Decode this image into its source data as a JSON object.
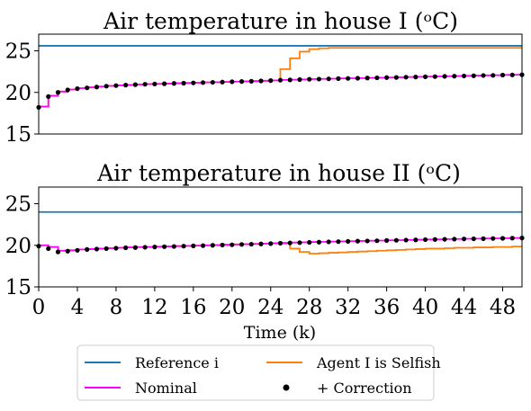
{
  "chart_data": [
    {
      "type": "line",
      "title": "Air temperature in house I (ᵒC)",
      "xlabel": "",
      "ylabel": "",
      "xlim": [
        0,
        50
      ],
      "ylim": [
        15,
        27
      ],
      "y_ticks": [
        15,
        20,
        25
      ],
      "show_x_ticklabels": false,
      "grid": false,
      "series": [
        {
          "name": "Reference i",
          "color": "#1f77b4",
          "style": "line",
          "x": [
            0,
            50
          ],
          "y": [
            25.6,
            25.6
          ]
        },
        {
          "name": "Agent I is Selfish",
          "color": "#ff7f0e",
          "style": "step",
          "x": [
            0,
            1,
            2,
            3,
            4,
            5,
            6,
            7,
            8,
            9,
            10,
            11,
            12,
            13,
            14,
            15,
            16,
            17,
            18,
            19,
            20,
            21,
            22,
            23,
            24,
            25,
            26,
            27,
            28,
            29,
            30,
            31,
            32,
            33,
            34,
            35,
            36,
            37,
            38,
            39,
            40,
            41,
            42,
            43,
            44,
            45,
            46,
            47,
            48,
            49,
            50
          ],
          "y": [
            18.3,
            19.6,
            20.1,
            20.35,
            20.5,
            20.6,
            20.7,
            20.78,
            20.85,
            20.9,
            20.95,
            21.0,
            21.03,
            21.06,
            21.1,
            21.13,
            21.16,
            21.2,
            21.23,
            21.26,
            21.3,
            21.33,
            21.36,
            21.4,
            21.45,
            22.8,
            24.1,
            24.9,
            25.2,
            25.3,
            25.35,
            25.35,
            25.35,
            25.35,
            25.35,
            25.35,
            25.35,
            25.35,
            25.35,
            25.35,
            25.35,
            25.35,
            25.35,
            25.35,
            25.35,
            25.35,
            25.35,
            25.35,
            25.35,
            25.35,
            25.35
          ]
        },
        {
          "name": "Nominal",
          "color": "#ff00ff",
          "style": "step",
          "x": [
            0,
            1,
            2,
            3,
            4,
            5,
            6,
            7,
            8,
            9,
            10,
            11,
            12,
            13,
            14,
            15,
            16,
            17,
            18,
            19,
            20,
            21,
            22,
            23,
            24,
            25,
            26,
            27,
            28,
            29,
            30,
            31,
            32,
            33,
            34,
            35,
            36,
            37,
            38,
            39,
            40,
            41,
            42,
            43,
            44,
            45,
            46,
            47,
            48,
            49,
            50
          ],
          "y": [
            18.3,
            19.6,
            20.1,
            20.35,
            20.5,
            20.6,
            20.7,
            20.78,
            20.85,
            20.9,
            20.95,
            21.0,
            21.03,
            21.06,
            21.1,
            21.13,
            21.16,
            21.2,
            21.23,
            21.26,
            21.3,
            21.33,
            21.36,
            21.4,
            21.45,
            21.5,
            21.53,
            21.56,
            21.6,
            21.62,
            21.65,
            21.68,
            21.7,
            21.72,
            21.75,
            21.77,
            21.8,
            21.82,
            21.85,
            21.87,
            21.9,
            21.92,
            21.95,
            21.97,
            22.0,
            22.02,
            22.05,
            22.07,
            22.1,
            22.12,
            22.15
          ]
        },
        {
          "name": "+ Correction",
          "color": "#000000",
          "style": "dots",
          "x": [
            0,
            1,
            2,
            3,
            4,
            5,
            6,
            7,
            8,
            9,
            10,
            11,
            12,
            13,
            14,
            15,
            16,
            17,
            18,
            19,
            20,
            21,
            22,
            23,
            24,
            25,
            26,
            27,
            28,
            29,
            30,
            31,
            32,
            33,
            34,
            35,
            36,
            37,
            38,
            39,
            40,
            41,
            42,
            43,
            44,
            45,
            46,
            47,
            48,
            49,
            50
          ],
          "y": [
            18.2,
            19.5,
            20.0,
            20.3,
            20.45,
            20.55,
            20.65,
            20.75,
            20.82,
            20.88,
            20.93,
            20.98,
            21.01,
            21.04,
            21.08,
            21.11,
            21.14,
            21.18,
            21.21,
            21.24,
            21.28,
            21.31,
            21.34,
            21.38,
            21.42,
            21.47,
            21.5,
            21.54,
            21.58,
            21.6,
            21.63,
            21.66,
            21.68,
            21.7,
            21.73,
            21.75,
            21.78,
            21.8,
            21.83,
            21.85,
            21.88,
            21.9,
            21.93,
            21.95,
            21.98,
            22.0,
            22.03,
            22.05,
            22.08,
            22.1,
            22.12
          ]
        }
      ]
    },
    {
      "type": "line",
      "title": "Air temperature in house II (ᵒC)",
      "xlabel": "Time (k)",
      "ylabel": "",
      "xlim": [
        0,
        50
      ],
      "ylim": [
        15,
        27
      ],
      "y_ticks": [
        15,
        20,
        25
      ],
      "x_ticks": [
        0,
        4,
        8,
        12,
        16,
        20,
        24,
        28,
        32,
        36,
        40,
        44,
        48
      ],
      "grid": false,
      "series": [
        {
          "name": "Reference i",
          "color": "#1f77b4",
          "style": "line",
          "x": [
            0,
            50
          ],
          "y": [
            24.0,
            24.0
          ]
        },
        {
          "name": "Agent I is Selfish",
          "color": "#ff7f0e",
          "style": "step",
          "x": [
            0,
            1,
            2,
            3,
            4,
            5,
            6,
            7,
            8,
            9,
            10,
            11,
            12,
            13,
            14,
            15,
            16,
            17,
            18,
            19,
            20,
            21,
            22,
            23,
            24,
            25,
            26,
            27,
            28,
            29,
            30,
            31,
            32,
            33,
            34,
            35,
            36,
            37,
            38,
            39,
            40,
            41,
            42,
            43,
            44,
            45,
            46,
            47,
            48,
            49,
            50
          ],
          "y": [
            20.0,
            19.8,
            19.35,
            19.4,
            19.5,
            19.55,
            19.6,
            19.65,
            19.7,
            19.75,
            19.78,
            19.8,
            19.83,
            19.86,
            19.9,
            19.93,
            19.96,
            20.0,
            20.03,
            20.06,
            20.1,
            20.13,
            20.16,
            20.2,
            20.25,
            20.2,
            19.6,
            19.2,
            19.0,
            19.05,
            19.1,
            19.15,
            19.2,
            19.25,
            19.3,
            19.35,
            19.4,
            19.45,
            19.5,
            19.55,
            19.6,
            19.6,
            19.65,
            19.7,
            19.7,
            19.75,
            19.75,
            19.8,
            19.8,
            19.85,
            19.85
          ]
        },
        {
          "name": "Nominal",
          "color": "#ff00ff",
          "style": "step",
          "x": [
            0,
            1,
            2,
            3,
            4,
            5,
            6,
            7,
            8,
            9,
            10,
            11,
            12,
            13,
            14,
            15,
            16,
            17,
            18,
            19,
            20,
            21,
            22,
            23,
            24,
            25,
            26,
            27,
            28,
            29,
            30,
            31,
            32,
            33,
            34,
            35,
            36,
            37,
            38,
            39,
            40,
            41,
            42,
            43,
            44,
            45,
            46,
            47,
            48,
            49,
            50
          ],
          "y": [
            20.0,
            19.8,
            19.35,
            19.4,
            19.5,
            19.55,
            19.6,
            19.65,
            19.7,
            19.75,
            19.78,
            19.8,
            19.83,
            19.86,
            19.9,
            19.93,
            19.96,
            20.0,
            20.03,
            20.06,
            20.1,
            20.13,
            20.16,
            20.2,
            20.25,
            20.3,
            20.33,
            20.36,
            20.4,
            20.42,
            20.45,
            20.47,
            20.5,
            20.52,
            20.55,
            20.57,
            20.6,
            20.62,
            20.65,
            20.67,
            20.7,
            20.72,
            20.74,
            20.76,
            20.78,
            20.8,
            20.82,
            20.84,
            20.86,
            20.88,
            20.9
          ]
        },
        {
          "name": "+ Correction",
          "color": "#000000",
          "style": "dots",
          "x": [
            0,
            1,
            2,
            3,
            4,
            5,
            6,
            7,
            8,
            9,
            10,
            11,
            12,
            13,
            14,
            15,
            16,
            17,
            18,
            19,
            20,
            21,
            22,
            23,
            24,
            25,
            26,
            27,
            28,
            29,
            30,
            31,
            32,
            33,
            34,
            35,
            36,
            37,
            38,
            39,
            40,
            41,
            42,
            43,
            44,
            45,
            46,
            47,
            48,
            49,
            50
          ],
          "y": [
            19.9,
            19.6,
            19.2,
            19.3,
            19.4,
            19.5,
            19.55,
            19.6,
            19.65,
            19.7,
            19.73,
            19.76,
            19.8,
            19.83,
            19.86,
            19.9,
            19.93,
            19.96,
            20.0,
            20.03,
            20.06,
            20.1,
            20.13,
            20.16,
            20.2,
            20.25,
            20.28,
            20.32,
            20.35,
            20.38,
            20.41,
            20.44,
            20.47,
            20.5,
            20.52,
            20.55,
            20.58,
            20.6,
            20.63,
            20.65,
            20.68,
            20.7,
            20.72,
            20.74,
            20.76,
            20.78,
            20.8,
            20.82,
            20.84,
            20.86,
            20.88
          ]
        }
      ]
    }
  ],
  "legend": {
    "placement": "bottom-center",
    "entries": [
      {
        "label": "Reference i",
        "color": "#1f77b4",
        "marker": "line"
      },
      {
        "label": "Agent I is Selfish",
        "color": "#ff7f0e",
        "marker": "line"
      },
      {
        "label": "Nominal",
        "color": "#ff00ff",
        "marker": "line"
      },
      {
        "label": "+ Correction",
        "color": "#000000",
        "marker": "dot"
      }
    ]
  }
}
